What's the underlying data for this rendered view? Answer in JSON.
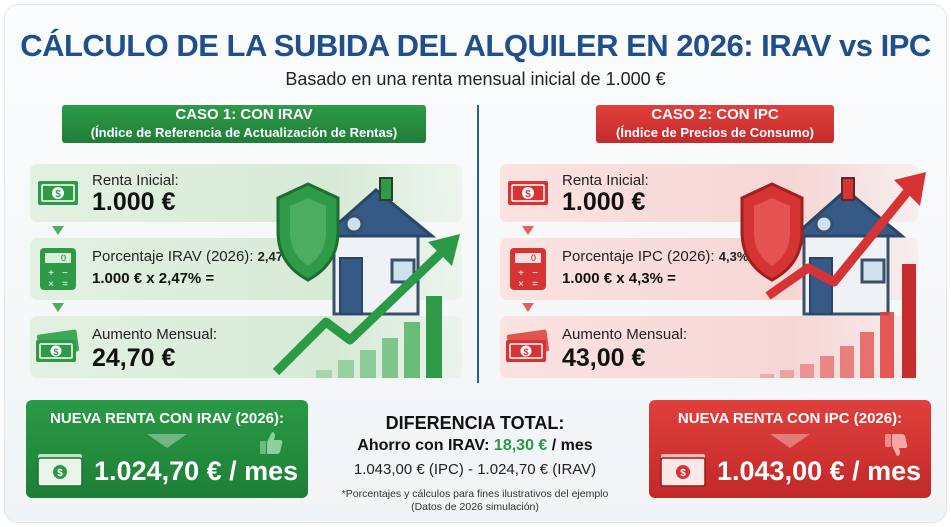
{
  "header": {
    "title": "CÁLCULO DE LA SUBIDA DEL ALQUILER EN 2026: IRAV vs IPC",
    "subtitle": "Basado en una renta mensual inicial de 1.000 €"
  },
  "case1": {
    "tag_line1": "CASO 1: CON IRAV",
    "tag_line2": "(Índice de Referencia de Actualización de Rentas)",
    "initial_label": "Renta Inicial:",
    "initial_value": "1.000 €",
    "percent_label": "Porcentaje IRAV (2026):",
    "percent_value": "2,47%",
    "calc": "1.000 € x 2,47% =",
    "increase_label": "Aumento Mensual:",
    "increase_value": "24,70 €",
    "result_title": "NUEVA RENTA CON IRAV (2026):",
    "result_value": "1.024,70 € / mes",
    "accent": "#2a9a46"
  },
  "case2": {
    "tag_line1": "CASO 2: CON IPC",
    "tag_line2": "(Índice de Precios de Consumo)",
    "initial_label": "Renta Inicial:",
    "initial_value": "1.000 €",
    "percent_label": "Porcentaje IPC (2026):",
    "percent_value": "4,3%",
    "calc": "1.000 € x 4,3% =",
    "increase_label": "Aumento Mensual:",
    "increase_value": "43,00 €",
    "result_title": "NUEVA RENTA CON IPC (2026):",
    "result_value": "1.043,00 € / mes",
    "accent": "#d63434"
  },
  "difference": {
    "title": "DIFERENCIA TOTAL:",
    "saving_label": "Ahorro con IRAV:",
    "saving_amount": "18,30 €",
    "saving_unit": "/ mes",
    "formula": "1.043,00 € (IPC) - 1.024,70 € (IRAV)"
  },
  "footnote": {
    "line1": "*Porcentajes y cálculos para fines ilustrativos del ejemplo",
    "line2": "(Datos de 2026 simulación)"
  }
}
